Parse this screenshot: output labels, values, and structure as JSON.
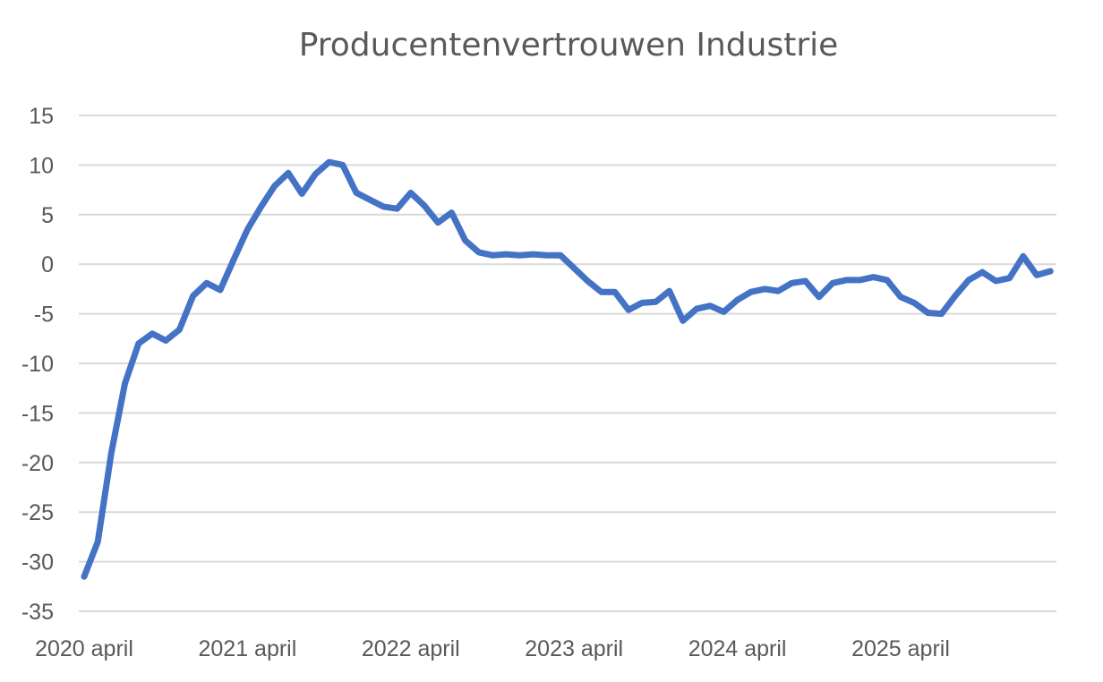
{
  "chart_data": {
    "type": "line",
    "title": "Producentenvertrouwen Industrie",
    "xlabel": "",
    "ylabel": "",
    "ylim": [
      -35,
      15
    ],
    "yticks": [
      15,
      10,
      5,
      0,
      -5,
      -10,
      -15,
      -20,
      -25,
      -30,
      -35
    ],
    "xtick_labels": [
      "2020 april",
      "2021 april",
      "2022 april",
      "2023 april",
      "2024 april",
      "2025 april"
    ],
    "grid": true,
    "legend": "none",
    "color": "#4472C4",
    "x_start": "2020-04",
    "x_end": "2026-01",
    "values": [
      -31.5,
      -28,
      -19,
      -12,
      -8,
      -7,
      -7.7,
      -6.6,
      -3.2,
      -1.9,
      -2.6,
      0.5,
      3.5,
      5.8,
      7.9,
      9.2,
      7.1,
      9.1,
      10.3,
      10,
      7.2,
      6.5,
      5.8,
      5.6,
      7.2,
      5.9,
      4.2,
      5.2,
      2.4,
      1.2,
      0.9,
      1,
      0.9,
      1,
      0.9,
      0.9,
      -0.4,
      -1.7,
      -2.8,
      -2.8,
      -4.6,
      -3.9,
      -3.8,
      -2.7,
      -5.7,
      -4.5,
      -4.2,
      -4.8,
      -3.6,
      -2.8,
      -2.5,
      -2.7,
      -1.9,
      -1.7,
      -3.3,
      -1.9,
      -1.6,
      -1.6,
      -1.3,
      -1.6,
      -3.3,
      -3.9,
      -4.9,
      -5,
      -3.2,
      -1.6,
      -0.8,
      -1.7,
      -1.4,
      0.8,
      -1.1,
      -0.7
    ]
  }
}
